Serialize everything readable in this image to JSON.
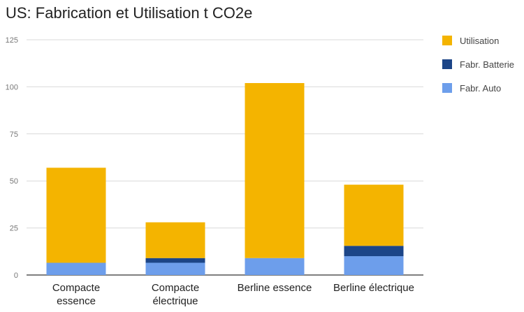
{
  "chart_data": {
    "type": "bar",
    "stacked": true,
    "title": "US: Fabrication et Utilisation t CO2e",
    "categories": [
      [
        "Compacte",
        "essence"
      ],
      [
        "Compacte",
        "électrique"
      ],
      [
        "Berline essence"
      ],
      [
        "Berline électrique"
      ]
    ],
    "series": [
      {
        "name": "Fabr. Auto",
        "color": "#6d9eeb",
        "values": [
          6.5,
          6.5,
          9,
          10
        ]
      },
      {
        "name": "Fabr. Batterie",
        "color": "#1c4587",
        "values": [
          0,
          2.5,
          0,
          5.5
        ]
      },
      {
        "name": "Utilisation",
        "color": "#f4b400",
        "values": [
          50.5,
          19,
          93,
          32.5
        ]
      }
    ],
    "legend_order": [
      "Utilisation",
      "Fabr. Batterie",
      "Fabr. Auto"
    ],
    "yticks": [
      "0",
      "25",
      "50",
      "75",
      "100",
      "125"
    ],
    "ylim": [
      0,
      125
    ],
    "grid": true,
    "legend_position": "right"
  }
}
